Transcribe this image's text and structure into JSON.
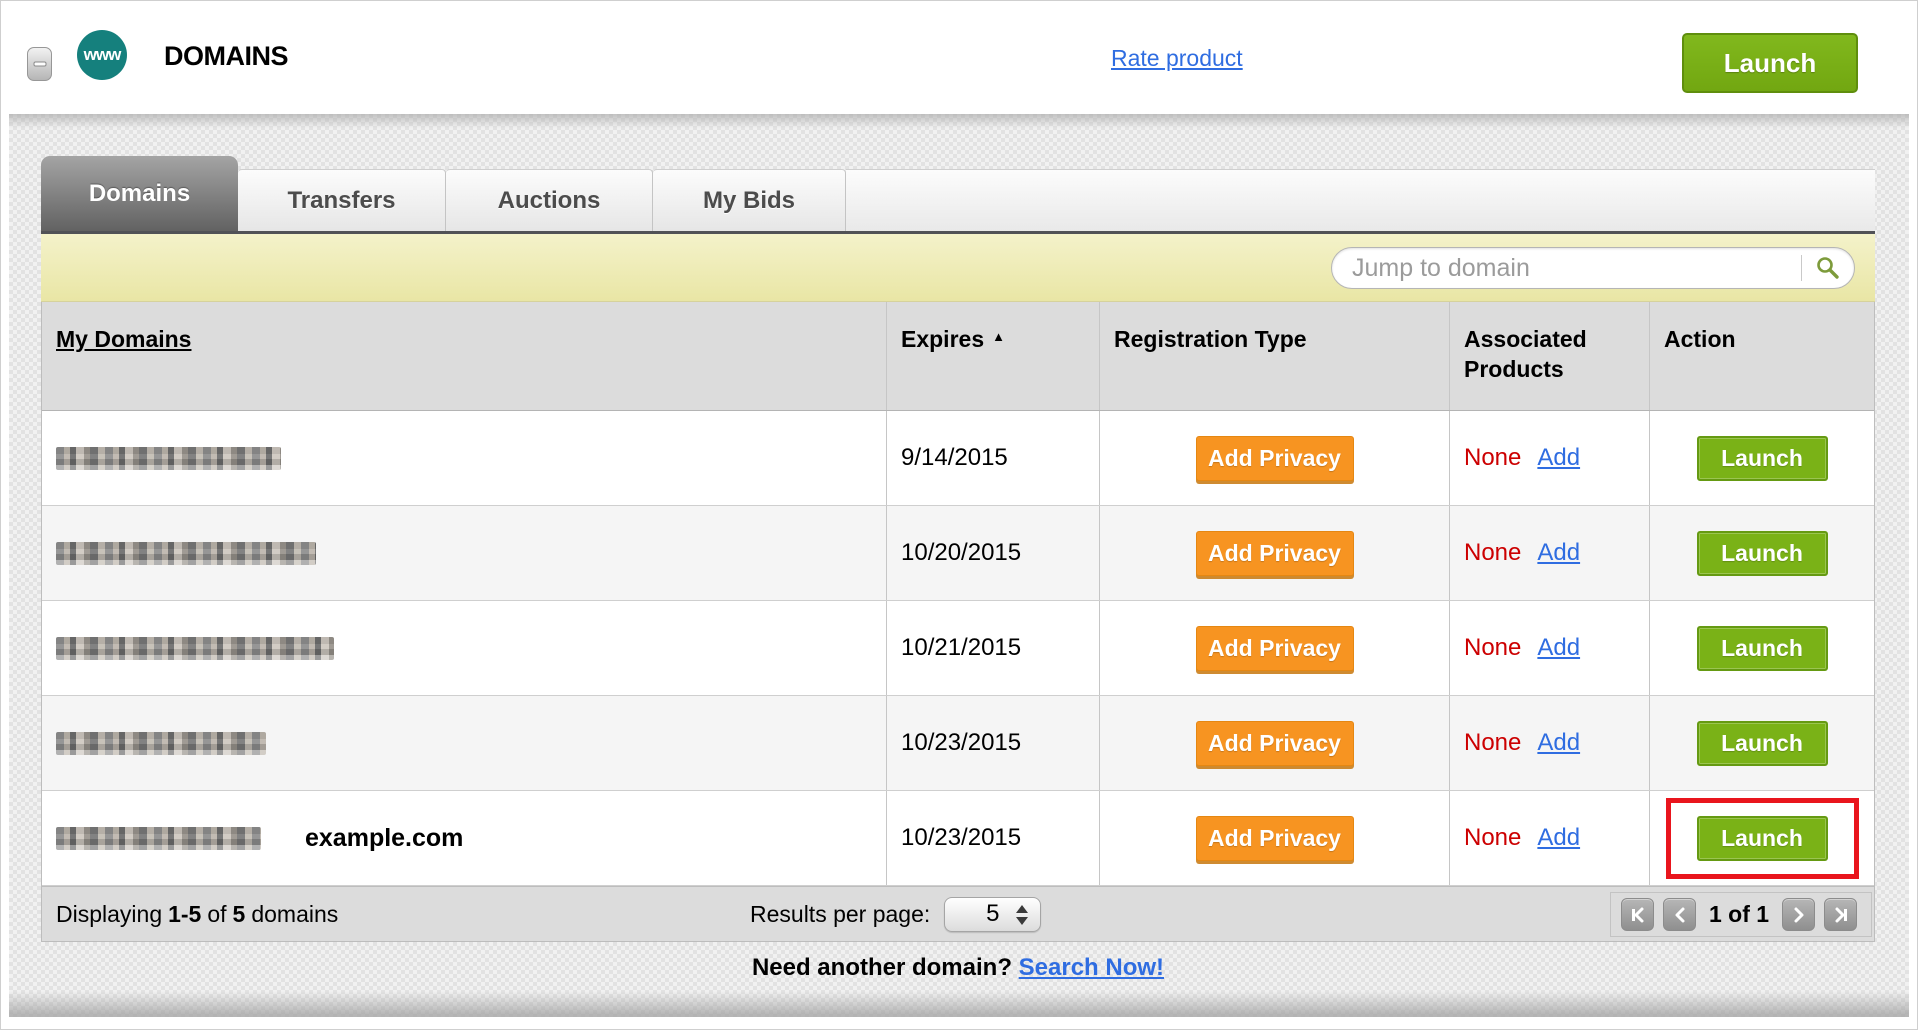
{
  "header": {
    "badge": "www",
    "title": "DOMAINS",
    "rate_link": "Rate product",
    "launch_label": "Launch"
  },
  "tabs": [
    {
      "label": "Domains",
      "active": true
    },
    {
      "label": "Transfers",
      "active": false
    },
    {
      "label": "Auctions",
      "active": false
    },
    {
      "label": "My Bids",
      "active": false
    }
  ],
  "search": {
    "placeholder": "Jump to domain"
  },
  "table": {
    "columns": [
      "My Domains",
      "Expires",
      "Registration Type",
      "Associated Products",
      "Action"
    ],
    "sort": {
      "column": "Expires",
      "direction": "ascending"
    },
    "icons": {
      "sort_asc": "▲"
    },
    "labels": {
      "add_privacy": "Add Privacy",
      "none": "None",
      "add": "Add",
      "launch": "Launch"
    },
    "rows": [
      {
        "domain": "(redacted)",
        "expires": "9/14/2015"
      },
      {
        "domain": "(redacted)",
        "expires": "10/20/2015"
      },
      {
        "domain": "(redacted)",
        "expires": "10/21/2015"
      },
      {
        "domain": "(redacted)",
        "expires": "10/23/2015"
      },
      {
        "domain": "(redacted)",
        "expires": "10/23/2015",
        "annotation": "example.com",
        "highlighted": true
      }
    ]
  },
  "footer": {
    "displaying": {
      "pre": "Displaying",
      "range": "1-5",
      "mid": "of",
      "total": "5",
      "post": "domains"
    },
    "results_per_page": {
      "label": "Results per page:",
      "value": "5"
    },
    "pagination": {
      "label": "1 of 1"
    }
  },
  "bottom": {
    "prompt": "Need another domain?",
    "link": "Search Now!"
  },
  "colors": {
    "launch_green": "#7ab217",
    "privacy_orange": "#f79421",
    "link_blue": "#2f6de1",
    "none_red": "#cc0001",
    "highlight_red": "#e9151d",
    "badge_teal": "#15807d",
    "search_bar_yellow": "#ece9ab"
  }
}
